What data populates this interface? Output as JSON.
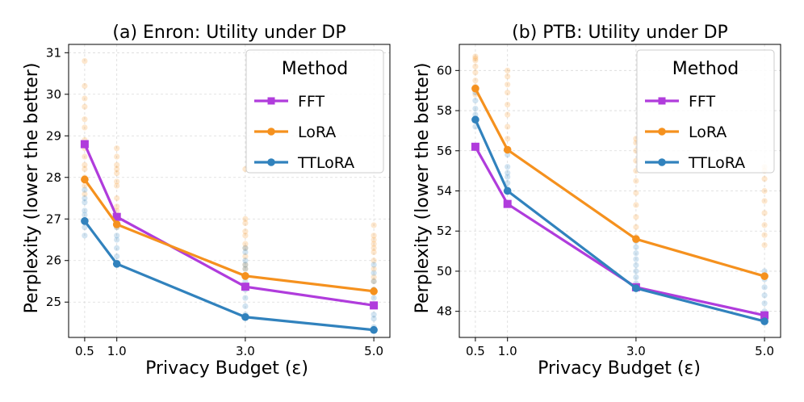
{
  "chart_data": [
    {
      "type": "line",
      "title": "(a) Enron: Utility under DP",
      "xlabel": "Privacy Budget (ε)",
      "ylabel": "Perplexity (lower the better)",
      "x": [
        0.5,
        1.0,
        3.0,
        5.0
      ],
      "x_tick_labels": [
        "0.5",
        "1.0",
        "3.0",
        "5.0"
      ],
      "xlim": [
        0.25,
        5.25
      ],
      "ylim": [
        24.15,
        31.2
      ],
      "y_ticks": [
        25,
        26,
        27,
        28,
        29,
        30,
        31
      ],
      "grid": true,
      "legend": {
        "title": "Method",
        "placement": "top-right"
      },
      "series": [
        {
          "name": "FFT",
          "values": [
            28.8,
            27.05,
            25.37,
            24.92
          ],
          "color": "#b03cdc",
          "marker": "square"
        },
        {
          "name": "LoRA",
          "values": [
            27.95,
            26.87,
            25.63,
            25.26
          ],
          "color": "#f5911e",
          "marker": "circle"
        },
        {
          "name": "TTLoRA",
          "values": [
            26.95,
            25.92,
            24.64,
            24.33
          ],
          "color": "#3182bd",
          "marker": "circle"
        }
      ],
      "scatter": {
        "LoRA": [
          [
            0.5,
            [
              30.8,
              30.2,
              29.9,
              29.7,
              29.4,
              29.2,
              28.9,
              28.7,
              28.5,
              28.3,
              28.2,
              28.0,
              27.8,
              27.6
            ]
          ],
          [
            1.0,
            [
              28.7,
              28.5,
              28.3,
              28.2,
              28.1,
              27.9,
              27.8,
              27.5,
              27.3,
              27.2,
              27.0,
              26.8
            ]
          ],
          [
            3.0,
            [
              28.2,
              27.0,
              26.9,
              26.7,
              26.6,
              26.4,
              26.3,
              26.1,
              25.9,
              25.8,
              25.6
            ]
          ],
          [
            5.0,
            [
              26.85,
              26.6,
              26.5,
              26.4,
              26.3,
              26.2,
              26.0,
              25.8,
              25.6,
              25.5,
              25.3
            ]
          ]
        ],
        "TTLoRA": [
          [
            0.5,
            [
              27.7,
              27.5,
              27.4,
              27.2,
              27.1,
              26.95,
              26.8,
              26.6
            ]
          ],
          [
            1.0,
            [
              26.9,
              26.8,
              26.6,
              26.5,
              26.3,
              26.1,
              25.95
            ]
          ],
          [
            3.0,
            [
              26.3,
              26.2,
              26.0,
              25.9,
              25.8,
              25.6,
              25.5,
              25.3,
              25.1,
              24.9,
              24.7
            ]
          ],
          [
            5.0,
            [
              25.9,
              25.7,
              25.5,
              25.3,
              25.1,
              24.9,
              24.7,
              24.6,
              24.4,
              24.3
            ]
          ]
        ]
      }
    },
    {
      "type": "line",
      "title": "(b) PTB: Utility under DP",
      "xlabel": "Privacy Budget (ε)",
      "ylabel": "Perplexity (lower the better)",
      "x": [
        0.5,
        1.0,
        3.0,
        5.0
      ],
      "x_tick_labels": [
        "0.5",
        "1.0",
        "3.0",
        "5.0"
      ],
      "xlim": [
        0.25,
        5.25
      ],
      "ylim": [
        46.7,
        61.3
      ],
      "y_ticks": [
        48,
        50,
        52,
        54,
        56,
        58,
        60
      ],
      "grid": true,
      "legend": {
        "title": "Method",
        "placement": "top-right"
      },
      "series": [
        {
          "name": "FFT",
          "values": [
            56.2,
            53.35,
            49.2,
            47.8
          ],
          "color": "#b03cdc",
          "marker": "square"
        },
        {
          "name": "LoRA",
          "values": [
            59.1,
            56.05,
            51.6,
            49.75
          ],
          "color": "#f5911e",
          "marker": "circle"
        },
        {
          "name": "TTLoRA",
          "values": [
            57.55,
            54.0,
            49.15,
            47.5
          ],
          "color": "#3182bd",
          "marker": "circle"
        }
      ],
      "scatter": {
        "LoRA": [
          [
            0.5,
            [
              60.7,
              60.6,
              60.5,
              60.2,
              59.9,
              59.5,
              59.2,
              58.8
            ]
          ],
          [
            1.0,
            [
              60.0,
              59.7,
              59.3,
              58.9,
              58.3,
              57.8,
              57.2,
              56.6,
              56.0
            ]
          ],
          [
            3.0,
            [
              56.6,
              56.4,
              56.0,
              55.5,
              55.0,
              54.5,
              53.9,
              53.3,
              52.7,
              52.2,
              51.7
            ]
          ],
          [
            5.0,
            [
              55.2,
              55.0,
              54.6,
              54.0,
              53.5,
              52.9,
              52.3,
              51.8,
              51.3
            ]
          ]
        ],
        "TTLoRA": [
          [
            0.5,
            [
              58.9,
              58.5,
              58.1,
              57.8,
              57.5,
              57.2
            ]
          ],
          [
            1.0,
            [
              55.8,
              55.2,
              54.9,
              54.7,
              54.4,
              54.1
            ]
          ],
          [
            3.0,
            [
              51.5,
              51.2,
              50.9,
              50.6,
              50.3,
              50.0,
              49.7,
              49.4
            ]
          ],
          [
            5.0,
            [
              50.0,
              49.6,
              49.2,
              48.8,
              48.4,
              48.0,
              47.7
            ]
          ]
        ]
      }
    }
  ]
}
